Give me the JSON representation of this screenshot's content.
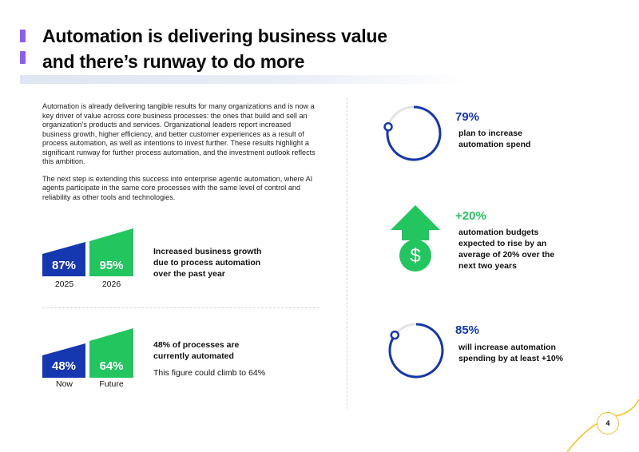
{
  "title": {
    "line1": "Automation is delivering business value",
    "line2": "and there’s runway to do more"
  },
  "intro": {
    "p1": "Automation is already delivering tangible results for many organizations and is now a key driver of value across core business processes: the ones that build and sell an organization’s products and services. Organizational leaders report increased business growth, higher efficiency, and better customer experiences as a result of process automation, as well as intentions to invest further. These results highlight a significant runway for further process automation, and the investment outlook reflects this ambition.",
    "p2": "The next step is extending this success into enterprise agentic automation, where AI agents participate in the same core processes with the same level of control and reliability as other tools and technologies."
  },
  "growth": {
    "bar1_value": "87%",
    "bar1_label": "2025",
    "bar2_value": "95%",
    "bar2_label": "2026",
    "desc_line1": "Increased business growth",
    "desc_line2": "due to process automation",
    "desc_line3": "over the past year"
  },
  "processes": {
    "bar1_value": "48%",
    "bar1_label": "Now",
    "bar2_value": "64%",
    "bar2_label": "Future",
    "desc_line1": "48% of processes are",
    "desc_line2": "currently automated",
    "note": "This figure could climb to 64%"
  },
  "stats": {
    "s1_value": "79%",
    "s1_fraction": 0.79,
    "s1_line1": "plan to increase",
    "s1_line2": "automation spend",
    "s2_value": "+20%",
    "s2_line1": "automation budgets",
    "s2_line2": "expected to rise by an",
    "s2_line3": "average of 20% over the",
    "s2_line4": "next two years",
    "s3_value": "85%",
    "s3_fraction": 0.85,
    "s3_line1": "will increase automation",
    "s3_line2": "spending by at least +10%"
  },
  "page_number": "4",
  "colors": {
    "blue": "#1537b0",
    "green": "#22c55e",
    "purple": "#8b5cf6",
    "gold": "#f4c21b"
  }
}
